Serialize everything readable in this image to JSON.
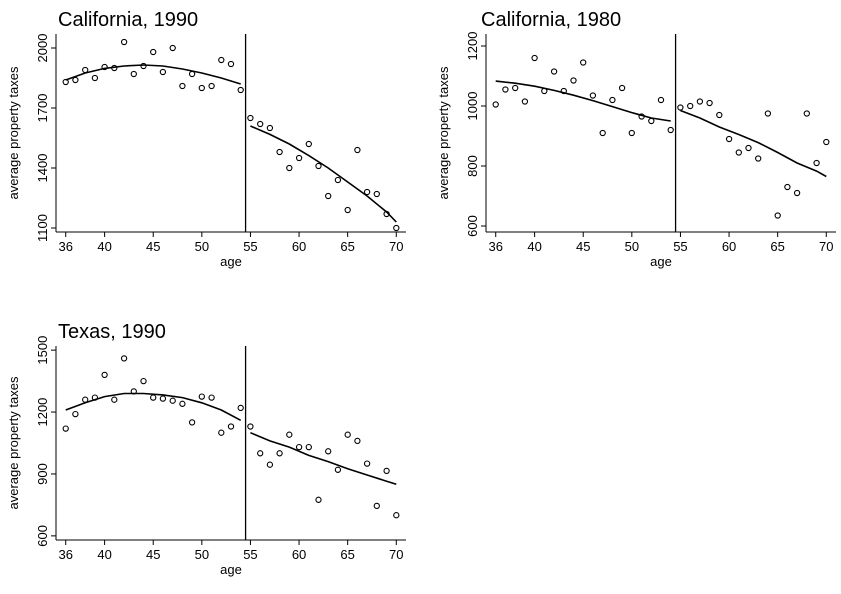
{
  "chart_data": [
    {
      "type": "scatter",
      "title": "California, 1990",
      "xlabel": "age",
      "ylabel": "average property taxes",
      "xlim": [
        35,
        71
      ],
      "ylim": [
        1080,
        2070
      ],
      "xticks": [
        36,
        40,
        45,
        50,
        55,
        60,
        65,
        70
      ],
      "yticks": [
        1100,
        1400,
        1700,
        2000
      ],
      "cutoff": 54.5,
      "grid": false,
      "points": {
        "x": [
          36,
          37,
          38,
          39,
          40,
          41,
          42,
          43,
          44,
          45,
          46,
          47,
          48,
          49,
          50,
          51,
          52,
          53,
          54,
          55,
          56,
          57,
          58,
          59,
          60,
          61,
          62,
          63,
          64,
          65,
          66,
          67,
          68,
          69,
          70
        ],
        "y": [
          1830,
          1840,
          1890,
          1850,
          1905,
          1900,
          2030,
          1870,
          1910,
          1980,
          1880,
          2000,
          1810,
          1870,
          1800,
          1810,
          1940,
          1920,
          1790,
          1650,
          1620,
          1600,
          1480,
          1400,
          1450,
          1520,
          1410,
          1260,
          1340,
          1190,
          1490,
          1280,
          1270,
          1170,
          1100
        ]
      },
      "fit_left": {
        "x": [
          36,
          38,
          40,
          42,
          44,
          46,
          48,
          50,
          52,
          54
        ],
        "y": [
          1840,
          1875,
          1898,
          1910,
          1915,
          1910,
          1895,
          1875,
          1850,
          1820
        ]
      },
      "fit_right": {
        "x": [
          55,
          57,
          59,
          61,
          63,
          65,
          67,
          69,
          70
        ],
        "y": [
          1610,
          1568,
          1520,
          1462,
          1400,
          1330,
          1260,
          1180,
          1130
        ]
      }
    },
    {
      "type": "scatter",
      "title": "California, 1980",
      "xlabel": "age",
      "ylabel": "average property taxes",
      "xlim": [
        35,
        71
      ],
      "ylim": [
        580,
        1240
      ],
      "xticks": [
        36,
        40,
        45,
        50,
        55,
        60,
        65,
        70
      ],
      "yticks": [
        600,
        800,
        1000,
        1200
      ],
      "cutoff": 54.5,
      "grid": false,
      "points": {
        "x": [
          36,
          37,
          38,
          39,
          40,
          41,
          42,
          43,
          44,
          45,
          46,
          47,
          48,
          49,
          50,
          51,
          52,
          53,
          54,
          55,
          56,
          57,
          58,
          59,
          60,
          61,
          62,
          63,
          64,
          65,
          66,
          67,
          68,
          69,
          70
        ],
        "y": [
          1005,
          1055,
          1060,
          1015,
          1160,
          1050,
          1115,
          1050,
          1085,
          1145,
          1035,
          910,
          1020,
          1060,
          910,
          965,
          950,
          1020,
          920,
          995,
          1000,
          1015,
          1010,
          970,
          890,
          845,
          860,
          825,
          975,
          635,
          730,
          710,
          975,
          810,
          880
        ]
      },
      "fit_left": {
        "x": [
          36,
          38,
          40,
          42,
          44,
          46,
          48,
          50,
          52,
          54
        ],
        "y": [
          1083,
          1076,
          1066,
          1052,
          1036,
          1018,
          998,
          978,
          960,
          950
        ]
      },
      "fit_right": {
        "x": [
          55,
          57,
          59,
          61,
          63,
          65,
          67,
          69,
          70
        ],
        "y": [
          985,
          960,
          930,
          905,
          878,
          845,
          810,
          783,
          765
        ]
      }
    },
    {
      "type": "scatter",
      "title": "Texas, 1990",
      "xlabel": "age",
      "ylabel": "average property taxes",
      "xlim": [
        35,
        71
      ],
      "ylim": [
        580,
        1520
      ],
      "xticks": [
        36,
        40,
        45,
        50,
        55,
        60,
        65,
        70
      ],
      "yticks": [
        600,
        900,
        1200,
        1500
      ],
      "cutoff": 54.5,
      "grid": false,
      "points": {
        "x": [
          36,
          37,
          38,
          39,
          40,
          41,
          42,
          43,
          44,
          45,
          46,
          47,
          48,
          49,
          50,
          51,
          52,
          53,
          54,
          55,
          56,
          57,
          58,
          59,
          60,
          61,
          62,
          63,
          64,
          65,
          66,
          67,
          68,
          69,
          70
        ],
        "y": [
          1120,
          1190,
          1260,
          1270,
          1380,
          1260,
          1460,
          1300,
          1350,
          1270,
          1265,
          1255,
          1240,
          1150,
          1275,
          1270,
          1100,
          1130,
          1220,
          1130,
          1000,
          945,
          1000,
          1090,
          1030,
          1030,
          775,
          1010,
          920,
          1090,
          1060,
          950,
          745,
          915,
          700
        ]
      },
      "fit_left": {
        "x": [
          36,
          38,
          40,
          42,
          44,
          46,
          48,
          50,
          52,
          54
        ],
        "y": [
          1210,
          1245,
          1275,
          1290,
          1290,
          1283,
          1270,
          1245,
          1210,
          1160
        ]
      },
      "fit_right": {
        "x": [
          55,
          57,
          59,
          61,
          63,
          65,
          67,
          69,
          70
        ],
        "y": [
          1100,
          1060,
          1030,
          990,
          960,
          925,
          895,
          865,
          850
        ]
      }
    }
  ]
}
